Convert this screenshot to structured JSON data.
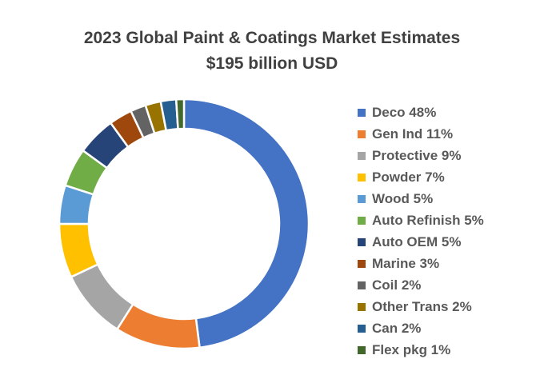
{
  "chart_data": {
    "type": "pie",
    "subtype": "donut",
    "title": "2023 Global Paint & Coatings Market Estimates",
    "subtitle": "$195 billion USD",
    "legend_position": "right",
    "slices": [
      {
        "label": "Deco 48%",
        "value": 48,
        "color": "#4472C4"
      },
      {
        "label": "Gen Ind 11%",
        "value": 11,
        "color": "#ED7D31"
      },
      {
        "label": "Protective 9%",
        "value": 9,
        "color": "#A5A5A5"
      },
      {
        "label": "Powder 7%",
        "value": 7,
        "color": "#FFC000"
      },
      {
        "label": "Wood 5%",
        "value": 5,
        "color": "#5B9BD5"
      },
      {
        "label": "Auto Refinish 5%",
        "value": 5,
        "color": "#70AD47"
      },
      {
        "label": "Auto OEM 5%",
        "value": 5,
        "color": "#264478"
      },
      {
        "label": "Marine 3%",
        "value": 3,
        "color": "#9E480E"
      },
      {
        "label": "Coil 2%",
        "value": 2,
        "color": "#636363"
      },
      {
        "label": "Other Trans 2%",
        "value": 2,
        "color": "#997300"
      },
      {
        "label": "Can 2%",
        "value": 2,
        "color": "#255E91"
      },
      {
        "label": "Flex pkg 1%",
        "value": 1,
        "color": "#43682B"
      }
    ]
  }
}
